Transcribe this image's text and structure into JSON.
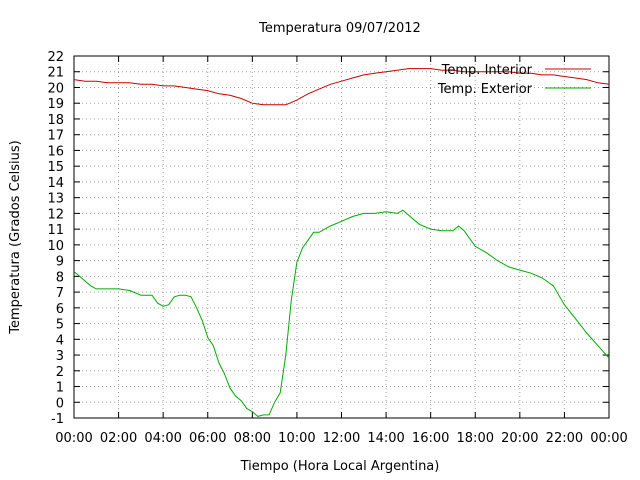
{
  "chart_data": {
    "type": "line",
    "title": "Temperatura 09/07/2012",
    "xlabel": "Tiempo (Hora Local Argentina)",
    "ylabel": "Temperatura (Grados Celsius)",
    "xlim": [
      0,
      24
    ],
    "ylim": [
      -1,
      22
    ],
    "grid": true,
    "legend_position": "top-right",
    "x_ticks": [
      "00:00",
      "02:00",
      "04:00",
      "06:00",
      "08:00",
      "10:00",
      "12:00",
      "14:00",
      "16:00",
      "18:00",
      "20:00",
      "22:00",
      "00:00"
    ],
    "y_ticks": [
      "-1",
      "0",
      "1",
      "2",
      "3",
      "4",
      "5",
      "6",
      "7",
      "8",
      "9",
      "10",
      "11",
      "12",
      "13",
      "14",
      "15",
      "16",
      "17",
      "18",
      "19",
      "20",
      "21",
      "22"
    ],
    "series": [
      {
        "name": "Temp. Interior",
        "color": "#cc0000",
        "x": [
          0,
          0.5,
          1,
          1.5,
          2,
          2.5,
          3,
          3.5,
          4,
          4.5,
          5,
          5.5,
          6,
          6.5,
          7,
          7.5,
          8,
          8.5,
          9,
          9.5,
          10,
          10.5,
          11,
          11.5,
          12,
          12.5,
          13,
          13.5,
          14,
          14.5,
          15,
          15.5,
          16,
          16.5,
          17,
          17.5,
          18,
          18.5,
          19,
          19.5,
          20,
          20.5,
          21,
          21.5,
          22,
          22.5,
          23,
          23.5,
          24
        ],
        "y": [
          20.5,
          20.4,
          20.4,
          20.3,
          20.3,
          20.3,
          20.2,
          20.2,
          20.1,
          20.1,
          20.0,
          19.9,
          19.8,
          19.6,
          19.5,
          19.3,
          19.0,
          18.9,
          18.9,
          18.9,
          19.2,
          19.6,
          19.9,
          20.2,
          20.4,
          20.6,
          20.8,
          20.9,
          21.0,
          21.1,
          21.2,
          21.2,
          21.2,
          21.1,
          21.1,
          21.0,
          21.0,
          21.0,
          21.0,
          21.0,
          20.9,
          20.9,
          20.8,
          20.8,
          20.7,
          20.6,
          20.5,
          20.3,
          20.2
        ]
      },
      {
        "name": "Temp. Exterior",
        "color": "#00aa00",
        "x": [
          0,
          0.25,
          0.5,
          0.75,
          1,
          1.5,
          2,
          2.5,
          3,
          3.5,
          3.75,
          4,
          4.25,
          4.5,
          4.75,
          5,
          5.25,
          5.5,
          5.75,
          6,
          6.25,
          6.5,
          6.75,
          7,
          7.25,
          7.5,
          7.75,
          8,
          8.25,
          8.5,
          8.75,
          9,
          9.25,
          9.5,
          9.75,
          10,
          10.25,
          10.5,
          10.75,
          11,
          11.25,
          11.5,
          12,
          12.5,
          13,
          13.5,
          14,
          14.5,
          14.75,
          15,
          15.5,
          16,
          16.5,
          17,
          17.25,
          17.5,
          18,
          18.5,
          19,
          19.5,
          20,
          20.5,
          21,
          21.5,
          22,
          22.5,
          23,
          23.5,
          24
        ],
        "y": [
          8.3,
          8.0,
          7.7,
          7.4,
          7.2,
          7.2,
          7.2,
          7.1,
          6.8,
          6.8,
          6.3,
          6.1,
          6.2,
          6.7,
          6.8,
          6.8,
          6.7,
          6.0,
          5.2,
          4.1,
          3.6,
          2.5,
          1.8,
          0.9,
          0.4,
          0.1,
          -0.4,
          -0.6,
          -0.9,
          -0.8,
          -0.8,
          0.0,
          0.6,
          3.0,
          6.5,
          8.9,
          9.8,
          10.3,
          10.8,
          10.8,
          11.0,
          11.2,
          11.5,
          11.8,
          12.0,
          12.0,
          12.1,
          12.0,
          12.2,
          11.9,
          11.3,
          11.0,
          10.9,
          10.9,
          11.2,
          10.9,
          9.9,
          9.5,
          9.0,
          8.6,
          8.4,
          8.2,
          7.9,
          7.4,
          6.2,
          5.3,
          4.4,
          3.6,
          2.8
        ]
      }
    ]
  }
}
